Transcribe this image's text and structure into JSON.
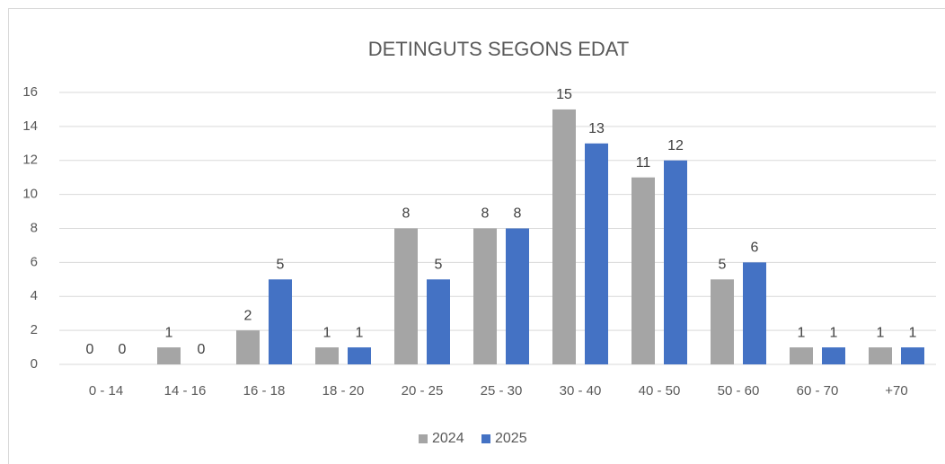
{
  "chart_data": {
    "type": "bar",
    "title": "DETINGUTS SEGONS EDAT",
    "categories": [
      "0 - 14",
      "14 - 16",
      "16 - 18",
      "18 - 20",
      "20 - 25",
      "25 - 30",
      "30 - 40",
      "40 - 50",
      "50 - 60",
      "60 - 70",
      "+70"
    ],
    "series": [
      {
        "name": "2024",
        "color": "#a5a5a5",
        "values": [
          0,
          1,
          2,
          1,
          8,
          8,
          15,
          11,
          5,
          1,
          1
        ]
      },
      {
        "name": "2025",
        "color": "#4472c4",
        "values": [
          0,
          0,
          5,
          1,
          5,
          8,
          13,
          12,
          6,
          1,
          1
        ]
      }
    ],
    "ylim": [
      0,
      16
    ],
    "yticks": [
      0,
      2,
      4,
      6,
      8,
      10,
      12,
      14,
      16
    ],
    "grid": true,
    "legend": "bottom"
  }
}
